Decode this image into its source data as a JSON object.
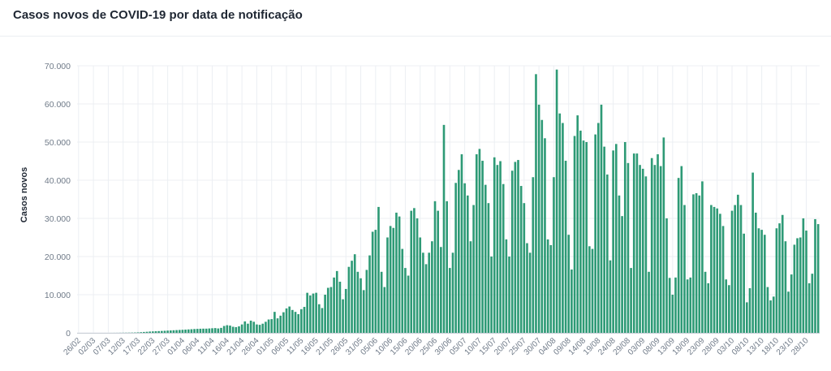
{
  "header": {
    "title": "Casos novos de COVID-19 por data de notificação"
  },
  "colors": {
    "bar": "#2e9a76",
    "grid": "#eceff3",
    "axis": "#c8ced6"
  },
  "chart_data": {
    "type": "bar",
    "title": "Casos novos de COVID-19 por data de notificação",
    "xlabel": "",
    "ylabel": "Casos novos",
    "ylim": [
      0,
      70000
    ],
    "grid": true,
    "legend": "none",
    "y_ticks": [
      0,
      10000,
      20000,
      30000,
      40000,
      50000,
      60000,
      70000
    ],
    "y_tick_labels": [
      "0",
      "10.000",
      "20.000",
      "30.000",
      "40.000",
      "50.000",
      "60.000",
      "70.000"
    ],
    "x_tick_labels": [
      "26/02",
      "02/03",
      "07/03",
      "12/03",
      "17/03",
      "22/03",
      "27/03",
      "01/04",
      "06/04",
      "11/04",
      "16/04",
      "21/04",
      "26/04",
      "01/05",
      "06/05",
      "11/05",
      "16/05",
      "21/05",
      "26/05",
      "31/05",
      "05/06",
      "10/06",
      "15/06",
      "20/06",
      "25/06",
      "30/06",
      "05/07",
      "10/07",
      "15/07",
      "20/07",
      "25/07",
      "30/07",
      "04/08",
      "09/08",
      "14/08",
      "19/08",
      "24/08",
      "29/08",
      "03/09",
      "08/09",
      "13/09",
      "18/09",
      "23/09",
      "28/09",
      "03/10",
      "08/10",
      "13/10",
      "18/10",
      "23/10",
      "28/10"
    ],
    "start_date": "2020-02-26",
    "values": [
      0,
      0,
      0,
      1,
      1,
      0,
      0,
      0,
      1,
      2,
      2,
      4,
      9,
      13,
      21,
      31,
      40,
      50,
      65,
      85,
      120,
      170,
      230,
      280,
      340,
      380,
      420,
      460,
      500,
      540,
      590,
      630,
      680,
      720,
      760,
      800,
      850,
      900,
      950,
      1000,
      1040,
      1080,
      1100,
      1100,
      1150,
      1200,
      1250,
      1150,
      1300,
      1800,
      2000,
      1900,
      1600,
      1500,
      1700,
      2200,
      3000,
      2400,
      3200,
      2900,
      2200,
      2100,
      2400,
      2900,
      3500,
      3600,
      5500,
      3800,
      4500,
      5400,
      6400,
      6900,
      6000,
      5500,
      4900,
      6200,
      6800,
      10500,
      9800,
      10300,
      10500,
      7500,
      6500,
      10000,
      11800,
      12000,
      14500,
      16200,
      13400,
      8800,
      11500,
      17300,
      18900,
      20600,
      16000,
      14300,
      11200,
      16500,
      20300,
      26500,
      27000,
      33000,
      16000,
      12000,
      25000,
      28000,
      27500,
      31500,
      30500,
      22000,
      17000,
      15000,
      32000,
      32700,
      30000,
      25000,
      21000,
      18000,
      21000,
      24000,
      34500,
      32000,
      22500,
      54500,
      34500,
      17000,
      21000,
      39300,
      42700,
      46800,
      39200,
      36000,
      24000,
      33500,
      46800,
      48200,
      45100,
      38800,
      34000,
      20000,
      46000,
      44000,
      45000,
      39000,
      24500,
      20000,
      42500,
      44800,
      45300,
      38500,
      34000,
      23500,
      21000,
      40800,
      67800,
      59800,
      55800,
      51000,
      24500,
      23000,
      40800,
      69000,
      57500,
      55000,
      45100,
      25700,
      16600,
      51600,
      57000,
      53000,
      50400,
      50000,
      22700,
      22000,
      52000,
      55000,
      59800,
      48800,
      41500,
      19000,
      47800,
      49500,
      36000,
      30600,
      50000,
      44500,
      17000,
      47000,
      47000,
      44000,
      43000,
      41000,
      16000,
      45800,
      44000,
      46800,
      43700,
      51200,
      30000,
      14400,
      10000,
      14500,
      40600,
      43700,
      33500,
      14000,
      14500,
      36300,
      36600,
      36000,
      39700,
      16000,
      13000,
      33500,
      33000,
      32600,
      31200,
      28000,
      14000,
      12500,
      32000,
      33500,
      36200,
      33500,
      26000,
      8000,
      11700,
      42000,
      31500,
      27400,
      27000,
      25700,
      12000,
      8500,
      9500,
      27400,
      28700,
      30900,
      24000,
      10800,
      15300,
      23100,
      24800,
      25000,
      30000,
      26800,
      13000,
      15500,
      29800,
      28500
    ]
  }
}
